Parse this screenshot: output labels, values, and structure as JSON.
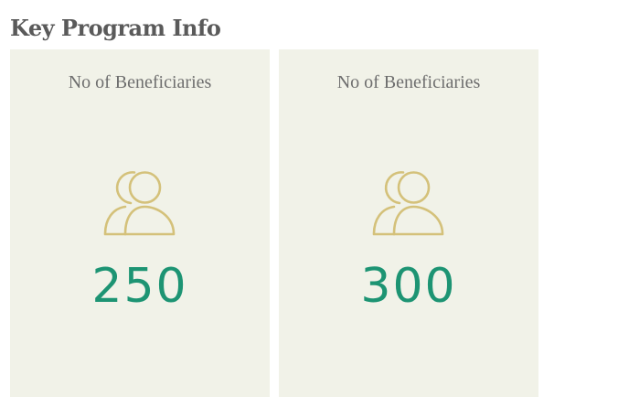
{
  "section": {
    "title": "Key Program Info"
  },
  "cards": [
    {
      "label": "No of Beneficiaries",
      "value": "250",
      "icon": "users-icon"
    },
    {
      "label": "No of Beneficiaries",
      "value": "300",
      "icon": "users-icon"
    }
  ],
  "colors": {
    "card_background": "#f1f2e8",
    "value": "#1d9473",
    "icon": "#d4c17a",
    "title": "#5a5a5a",
    "label": "#6e6e6e"
  }
}
